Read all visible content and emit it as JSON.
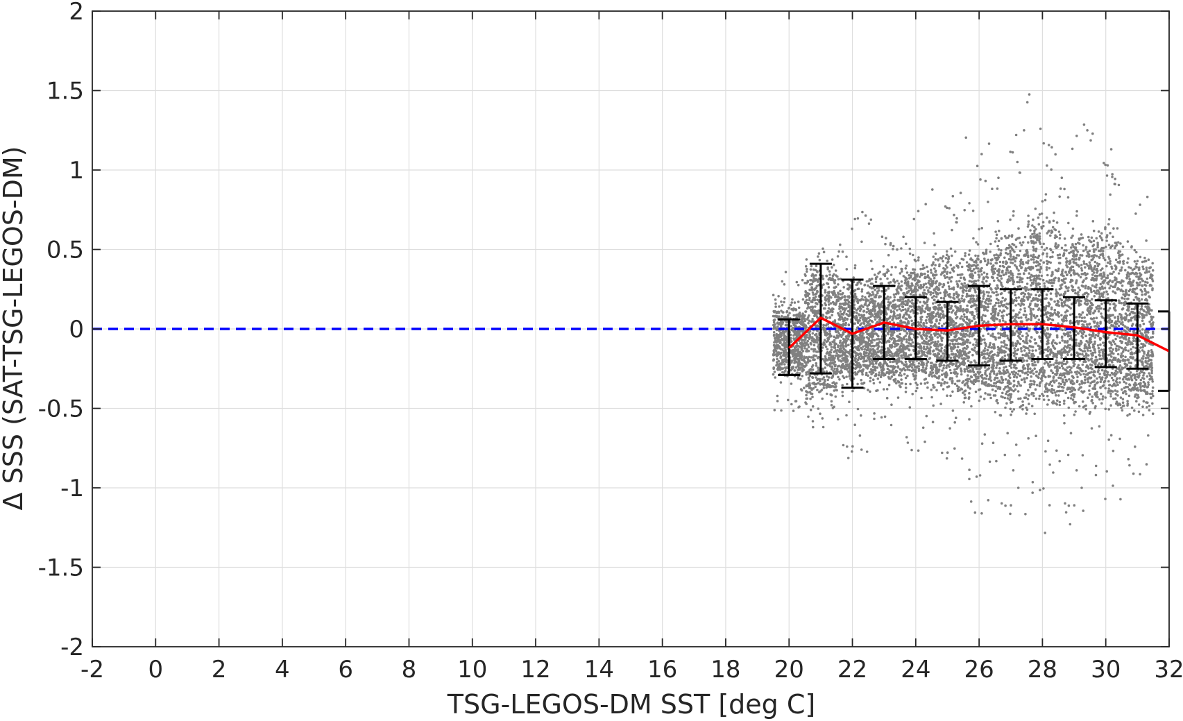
{
  "chart_data": {
    "type": "scatter",
    "xlabel": "TSG-LEGOS-DM SST [deg C]",
    "ylabel": "Δ SSS (SAT-TSG-LEGOS-DM)",
    "xlim": [
      -2,
      32
    ],
    "ylim": [
      -2,
      2
    ],
    "xticks": [
      -2,
      0,
      2,
      4,
      6,
      8,
      10,
      12,
      14,
      16,
      18,
      20,
      22,
      24,
      26,
      28,
      30,
      32
    ],
    "xtick_labels": [
      "-2",
      "0",
      "2",
      "4",
      "6",
      "8",
      "10",
      "12",
      "14",
      "16",
      "18",
      "20",
      "22",
      "24",
      "26",
      "28",
      "30",
      "32"
    ],
    "yticks": [
      -2,
      -1.5,
      -1,
      -0.5,
      0,
      0.5,
      1,
      1.5,
      2
    ],
    "ytick_labels": [
      "-2",
      "-1.5",
      "-1",
      "-0.5",
      "0",
      "0.5",
      "1",
      "1.5",
      "2"
    ],
    "grid": true,
    "reference_line": {
      "y": 0,
      "style": "dashed",
      "color": "#0000ff"
    },
    "scatter_cloud": {
      "color": "#808080",
      "description_points": "dense cloud of individual match-ups",
      "bins": [
        {
          "x": 20,
          "core_lo": -0.25,
          "core_hi": 0.1,
          "spread": 0.45
        },
        {
          "x": 21,
          "core_lo": -0.4,
          "core_hi": 0.35,
          "spread": 0.6
        },
        {
          "x": 22,
          "core_lo": -0.3,
          "core_hi": 0.25,
          "spread": 0.8
        },
        {
          "x": 23,
          "core_lo": -0.3,
          "core_hi": 0.3,
          "spread": 0.7
        },
        {
          "x": 24,
          "core_lo": -0.3,
          "core_hi": 0.35,
          "spread": 0.8
        },
        {
          "x": 25,
          "core_lo": -0.35,
          "core_hi": 0.4,
          "spread": 0.9
        },
        {
          "x": 26,
          "core_lo": -0.4,
          "core_hi": 0.45,
          "spread": 1.2
        },
        {
          "x": 27,
          "core_lo": -0.45,
          "core_hi": 0.55,
          "spread": 1.3
        },
        {
          "x": 28,
          "core_lo": -0.45,
          "core_hi": 0.65,
          "spread": 1.4
        },
        {
          "x": 29,
          "core_lo": -0.45,
          "core_hi": 0.55,
          "spread": 1.3
        },
        {
          "x": 30,
          "core_lo": -0.45,
          "core_hi": 0.55,
          "spread": 1.2
        },
        {
          "x": 31,
          "core_lo": -0.45,
          "core_hi": 0.4,
          "spread": 0.9
        }
      ]
    },
    "mean_line": {
      "color": "#ff0000",
      "x": [
        20,
        21,
        22,
        23,
        24,
        25,
        26,
        27,
        28,
        29,
        30,
        31,
        32
      ],
      "y": [
        -0.12,
        0.07,
        -0.03,
        0.04,
        0.0,
        -0.01,
        0.02,
        0.03,
        0.03,
        0.01,
        -0.02,
        -0.04,
        -0.14
      ]
    },
    "error_bars": {
      "color": "#000000",
      "x": [
        20,
        21,
        22,
        23,
        24,
        25,
        26,
        27,
        28,
        29,
        30,
        31,
        32
      ],
      "lower": [
        -0.29,
        -0.28,
        -0.37,
        -0.19,
        -0.19,
        -0.2,
        -0.23,
        -0.2,
        -0.19,
        -0.19,
        -0.24,
        -0.25,
        -0.39
      ],
      "upper": [
        0.06,
        0.41,
        0.31,
        0.27,
        0.2,
        0.17,
        0.27,
        0.25,
        0.25,
        0.2,
        0.18,
        0.16,
        0.11
      ]
    }
  }
}
